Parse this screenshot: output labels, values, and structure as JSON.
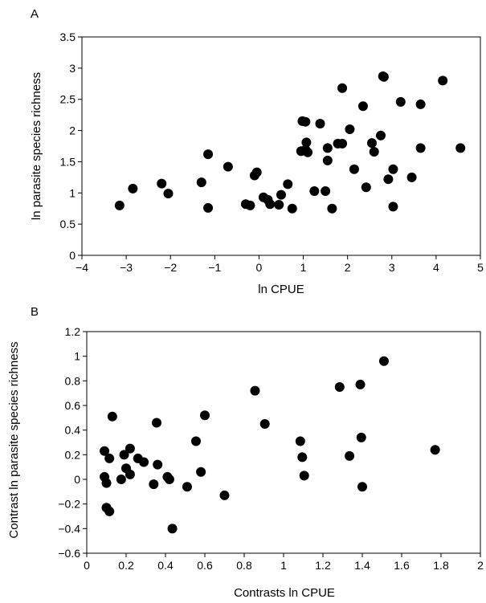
{
  "chart_data": [
    {
      "type": "scatter",
      "panel_label": "A",
      "xlabel": "ln CPUE",
      "ylabel": "ln parasite species  richness",
      "xlim": [
        -4,
        5
      ],
      "ylim": [
        0,
        3.5
      ],
      "xticks": [
        -4,
        -3,
        -2,
        -1,
        0,
        1,
        2,
        3,
        4,
        5
      ],
      "xtick_labels": [
        "−4",
        "−3",
        "−2",
        "−1",
        "0",
        "1",
        "2",
        "3",
        "4",
        "5"
      ],
      "yticks": [
        0,
        0.5,
        1,
        1.5,
        2,
        2.5,
        3,
        3.5
      ],
      "ytick_labels": [
        "0",
        "0.5",
        "1",
        "1.5",
        "2",
        "2.5",
        "3",
        "3.5"
      ],
      "grid": false,
      "points": [
        {
          "x": -3.15,
          "y": 0.8
        },
        {
          "x": -2.85,
          "y": 1.07
        },
        {
          "x": -2.2,
          "y": 1.15
        },
        {
          "x": -2.05,
          "y": 0.99
        },
        {
          "x": -1.3,
          "y": 1.17
        },
        {
          "x": -1.15,
          "y": 1.62
        },
        {
          "x": -1.15,
          "y": 0.76
        },
        {
          "x": -0.7,
          "y": 1.42
        },
        {
          "x": -0.3,
          "y": 0.82
        },
        {
          "x": -0.2,
          "y": 0.8
        },
        {
          "x": -0.1,
          "y": 1.28
        },
        {
          "x": -0.05,
          "y": 1.33
        },
        {
          "x": 0.1,
          "y": 0.93
        },
        {
          "x": 0.2,
          "y": 0.89
        },
        {
          "x": 0.25,
          "y": 0.82
        },
        {
          "x": 0.45,
          "y": 0.81
        },
        {
          "x": 0.5,
          "y": 0.97
        },
        {
          "x": 0.65,
          "y": 1.14
        },
        {
          "x": 0.75,
          "y": 0.75
        },
        {
          "x": 0.95,
          "y": 1.67
        },
        {
          "x": 0.98,
          "y": 2.15
        },
        {
          "x": 1.05,
          "y": 2.14
        },
        {
          "x": 1.05,
          "y": 1.69
        },
        {
          "x": 1.07,
          "y": 1.81
        },
        {
          "x": 1.1,
          "y": 1.65
        },
        {
          "x": 1.25,
          "y": 1.03
        },
        {
          "x": 1.38,
          "y": 2.11
        },
        {
          "x": 1.5,
          "y": 1.03
        },
        {
          "x": 1.55,
          "y": 1.52
        },
        {
          "x": 1.55,
          "y": 1.72
        },
        {
          "x": 1.65,
          "y": 0.75
        },
        {
          "x": 1.78,
          "y": 1.79
        },
        {
          "x": 1.88,
          "y": 1.79
        },
        {
          "x": 1.88,
          "y": 2.68
        },
        {
          "x": 2.05,
          "y": 2.02
        },
        {
          "x": 2.15,
          "y": 1.38
        },
        {
          "x": 2.35,
          "y": 2.39
        },
        {
          "x": 2.42,
          "y": 1.09
        },
        {
          "x": 2.55,
          "y": 1.8
        },
        {
          "x": 2.6,
          "y": 1.66
        },
        {
          "x": 2.75,
          "y": 1.92
        },
        {
          "x": 2.8,
          "y": 2.87
        },
        {
          "x": 2.82,
          "y": 2.86
        },
        {
          "x": 2.92,
          "y": 1.22
        },
        {
          "x": 3.03,
          "y": 1.38
        },
        {
          "x": 3.03,
          "y": 0.78
        },
        {
          "x": 3.2,
          "y": 2.46
        },
        {
          "x": 3.45,
          "y": 1.25
        },
        {
          "x": 3.65,
          "y": 2.42
        },
        {
          "x": 3.65,
          "y": 1.72
        },
        {
          "x": 4.15,
          "y": 2.8
        },
        {
          "x": 4.55,
          "y": 1.72
        }
      ]
    },
    {
      "type": "scatter",
      "panel_label": "B",
      "xlabel": "Contrasts ln CPUE",
      "ylabel": "Contrast ln parasite species richness",
      "xlim": [
        0,
        2
      ],
      "ylim": [
        -0.6,
        1.2
      ],
      "xticks": [
        0,
        0.2,
        0.4,
        0.6,
        0.8,
        1,
        1.2,
        1.4,
        1.6,
        1.8,
        2
      ],
      "xtick_labels": [
        "0",
        "0.2",
        "0.4",
        "0.6",
        "0.8",
        "1",
        "1.2",
        "1.4",
        "1.6",
        "1.8",
        "2"
      ],
      "yticks": [
        -0.6,
        -0.4,
        -0.2,
        0,
        0.2,
        0.4,
        0.6,
        0.8,
        1,
        1.2
      ],
      "ytick_labels": [
        "−0.6",
        "−0.4",
        "−0.2",
        "0",
        "0.2",
        "0.4",
        "0.6",
        "0.8",
        "1",
        "1.2"
      ],
      "grid": false,
      "points": [
        {
          "x": 0.09,
          "y": 0.23
        },
        {
          "x": 0.09,
          "y": 0.02
        },
        {
          "x": 0.1,
          "y": -0.03
        },
        {
          "x": 0.1,
          "y": -0.23
        },
        {
          "x": 0.115,
          "y": 0.17
        },
        {
          "x": 0.115,
          "y": -0.26
        },
        {
          "x": 0.13,
          "y": 0.51
        },
        {
          "x": 0.175,
          "y": 0.0
        },
        {
          "x": 0.19,
          "y": 0.2
        },
        {
          "x": 0.2,
          "y": 0.09
        },
        {
          "x": 0.22,
          "y": 0.25
        },
        {
          "x": 0.22,
          "y": 0.04
        },
        {
          "x": 0.26,
          "y": 0.17
        },
        {
          "x": 0.29,
          "y": 0.14
        },
        {
          "x": 0.34,
          "y": -0.04
        },
        {
          "x": 0.355,
          "y": 0.46
        },
        {
          "x": 0.36,
          "y": 0.12
        },
        {
          "x": 0.41,
          "y": 0.02
        },
        {
          "x": 0.42,
          "y": 0.0
        },
        {
          "x": 0.435,
          "y": -0.4
        },
        {
          "x": 0.51,
          "y": -0.06
        },
        {
          "x": 0.555,
          "y": 0.31
        },
        {
          "x": 0.58,
          "y": 0.06
        },
        {
          "x": 0.6,
          "y": 0.52
        },
        {
          "x": 0.7,
          "y": -0.13
        },
        {
          "x": 0.855,
          "y": 0.72
        },
        {
          "x": 0.905,
          "y": 0.45
        },
        {
          "x": 1.085,
          "y": 0.31
        },
        {
          "x": 1.095,
          "y": 0.18
        },
        {
          "x": 1.105,
          "y": 0.03
        },
        {
          "x": 1.285,
          "y": 0.75
        },
        {
          "x": 1.335,
          "y": 0.19
        },
        {
          "x": 1.39,
          "y": 0.77
        },
        {
          "x": 1.395,
          "y": 0.34
        },
        {
          "x": 1.4,
          "y": -0.06
        },
        {
          "x": 1.51,
          "y": 0.96
        },
        {
          "x": 1.77,
          "y": 0.24
        }
      ]
    }
  ]
}
